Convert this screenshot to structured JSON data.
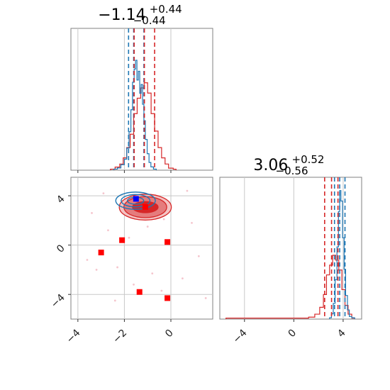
{
  "chart_data": {
    "type": "corner",
    "colors": {
      "series_a": "#1f77b4",
      "series_b": "#d62728",
      "grid": "#c8c8c8",
      "marker": "#ff0000",
      "truth": "#0000ff"
    },
    "params": [
      {
        "title": {
          "main": "−1.14",
          "sup": "+0.44",
          "sub": "−0.44"
        },
        "median": -1.14,
        "err_plus": 0.44,
        "err_minus": 0.44,
        "quantiles_a": [
          -1.82,
          -1.6,
          -1.16
        ],
        "quantiles_b": [
          -1.58,
          -1.14,
          -0.7
        ],
        "range": [
          -4.3,
          1.8
        ],
        "ticks": [
          -4,
          -2,
          0
        ],
        "tick_labels": [
          "−4",
          "−2",
          "0"
        ]
      },
      {
        "title": {
          "main": "3.06",
          "sup": "+0.52",
          "sub": "−0.56"
        },
        "median": 3.06,
        "err_plus": 0.52,
        "err_minus": 0.56,
        "quantiles_a": [
          3.3,
          3.72,
          4.15
        ],
        "quantiles_b": [
          2.5,
          3.06,
          3.58
        ],
        "range": [
          -6.0,
          5.5
        ],
        "ticks": [
          -4,
          0,
          4
        ],
        "tick_labels": [
          "−4",
          "0",
          "4"
        ]
      }
    ],
    "hist_a_p1": {
      "x": [
        -2.45,
        -2.3,
        -2.15,
        -2.0,
        -1.9,
        -1.8,
        -1.72,
        -1.65,
        -1.58,
        -1.52,
        -1.46,
        -1.4,
        -1.34,
        -1.28,
        -1.22,
        -1.16,
        -1.1,
        -1.02,
        -0.94,
        -0.86,
        -0.75
      ],
      "y": [
        0.01,
        0.02,
        0.05,
        0.1,
        0.2,
        0.35,
        0.55,
        0.8,
        0.92,
        1.0,
        0.82,
        0.9,
        0.7,
        0.78,
        0.6,
        0.45,
        0.28,
        0.15,
        0.07,
        0.03,
        0.01
      ]
    },
    "hist_b_p1": {
      "x": [
        -2.6,
        -2.4,
        -2.2,
        -2.05,
        -1.9,
        -1.75,
        -1.6,
        -1.45,
        -1.3,
        -1.15,
        -1.0,
        -0.85,
        -0.7,
        -0.55,
        -0.4,
        -0.25,
        -0.1,
        0.1
      ],
      "y": [
        0.01,
        0.03,
        0.06,
        0.12,
        0.22,
        0.35,
        0.55,
        0.7,
        0.8,
        0.85,
        0.75,
        0.55,
        0.38,
        0.22,
        0.12,
        0.06,
        0.02,
        0.01
      ]
    },
    "hist_a_p2": {
      "x": [
        2.9,
        3.05,
        3.2,
        3.35,
        3.5,
        3.62,
        3.72,
        3.82,
        3.95,
        4.08,
        4.2,
        4.35,
        4.5,
        4.7
      ],
      "y": [
        0.01,
        0.04,
        0.12,
        0.3,
        0.55,
        0.82,
        0.98,
        0.9,
        0.62,
        0.38,
        0.18,
        0.07,
        0.02,
        0.01
      ]
    },
    "hist_b_p2": {
      "x": [
        -5.5,
        -4.0,
        -2.5,
        -1.0,
        0.5,
        1.2,
        1.7,
        2.1,
        2.4,
        2.65,
        2.9,
        3.15,
        3.4,
        3.65,
        3.9,
        4.15,
        4.4,
        4.7
      ],
      "y": [
        0.01,
        0.01,
        0.01,
        0.01,
        0.01,
        0.02,
        0.05,
        0.12,
        0.25,
        0.45,
        0.55,
        0.65,
        0.6,
        0.5,
        0.3,
        0.14,
        0.05,
        0.01
      ]
    },
    "contours_b": {
      "center": [
        -1.1,
        3.08
      ],
      "radii_x": [
        0.55,
        0.92,
        1.12
      ],
      "radii_y": [
        0.45,
        0.85,
        1.05
      ],
      "fills": [
        "#d62728",
        "#e57c7d",
        "#f4c3c3"
      ]
    },
    "contours_a": {
      "center": [
        -1.52,
        3.6
      ],
      "radii_x": [
        0.35,
        0.62,
        0.85
      ],
      "radii_y": [
        0.28,
        0.5,
        0.7
      ]
    },
    "scatter_pink": [
      [
        -3.2,
        -2.0
      ],
      [
        -2.3,
        -1.8
      ],
      [
        -1.6,
        -3.2
      ],
      [
        -0.8,
        -2.3
      ],
      [
        0.5,
        -2.7
      ],
      [
        1.2,
        -0.9
      ],
      [
        -2.7,
        1.2
      ],
      [
        -0.3,
        2.1
      ],
      [
        0.7,
        4.4
      ],
      [
        -2.9,
        4.2
      ],
      [
        -1.0,
        1.5
      ],
      [
        -3.6,
        -1.2
      ],
      [
        -1.8,
        0.6
      ],
      [
        0.9,
        1.8
      ],
      [
        -0.4,
        -3.7
      ],
      [
        1.5,
        -4.3
      ],
      [
        -2.4,
        -4.5
      ],
      [
        -3.4,
        2.6
      ]
    ],
    "markers_red": [
      [
        -3.0,
        -0.6
      ],
      [
        -2.1,
        0.4
      ],
      [
        -0.15,
        0.25
      ],
      [
        -1.35,
        -3.8
      ],
      [
        -0.15,
        -4.3
      ],
      [
        -1.1,
        3.1
      ]
    ],
    "truth_marker": [
      -1.5,
      3.75
    ]
  }
}
